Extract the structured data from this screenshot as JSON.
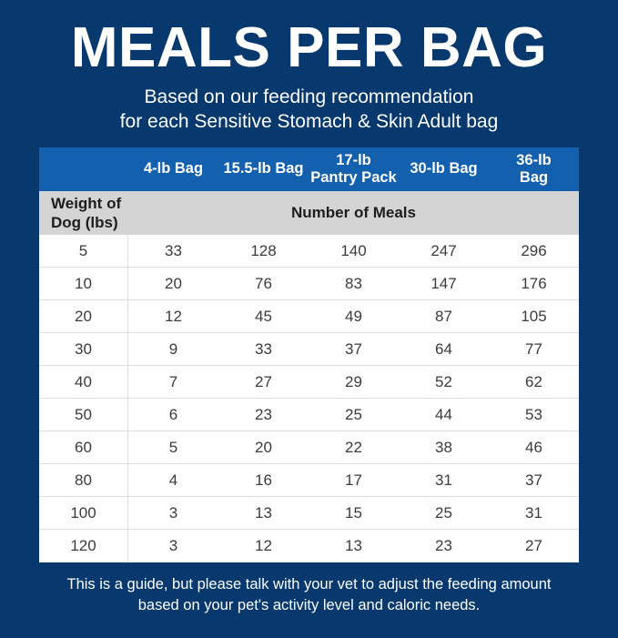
{
  "header": {
    "title": "MEALS PER BAG",
    "subtitle_line1": "Based on our feeding recommendation",
    "subtitle_line2": "for each Sensitive Stomach & Skin Adult bag"
  },
  "table": {
    "column_headers": [
      "",
      "4-lb Bag",
      "15.5-lb Bag",
      "17-lb\nPantry Pack",
      "30-lb Bag",
      "36-lb\nBag"
    ],
    "weight_header": "Weight of\nDog (lbs)",
    "meals_header": "Number of Meals"
  },
  "chart_data": {
    "type": "table",
    "title": "MEALS PER BAG",
    "subtitle": "Based on our feeding recommendation for each Sensitive Stomach & Skin Adult bag",
    "columns": [
      "Weight of Dog (lbs)",
      "4-lb Bag",
      "15.5-lb Bag",
      "17-lb Pantry Pack",
      "30-lb Bag",
      "36-lb Bag"
    ],
    "value_unit": "Number of Meals",
    "matrix": [
      [
        5,
        33,
        128,
        140,
        247,
        296
      ],
      [
        10,
        20,
        76,
        83,
        147,
        176
      ],
      [
        20,
        12,
        45,
        49,
        87,
        105
      ],
      [
        30,
        9,
        33,
        37,
        64,
        77
      ],
      [
        40,
        7,
        27,
        29,
        52,
        62
      ],
      [
        50,
        6,
        23,
        25,
        44,
        53
      ],
      [
        60,
        5,
        20,
        22,
        38,
        46
      ],
      [
        80,
        4,
        16,
        17,
        31,
        37
      ],
      [
        100,
        3,
        13,
        15,
        25,
        31
      ],
      [
        120,
        3,
        12,
        13,
        23,
        27
      ]
    ],
    "note": "This is a guide, but please talk with your vet to adjust the feeding amount based on your pet's activity level and caloric needs."
  },
  "footer": {
    "line1": "This is a guide, but please talk with your vet to adjust the feeding amount",
    "line2": "based on your pet's activity level and caloric needs."
  },
  "colors": {
    "background_navy": "#07386E",
    "header_blue": "#1360AF",
    "subheader_gray": "#D4D4D4",
    "row_white": "#FEFEFE",
    "row_divider": "#DEDEDE",
    "text_white": "#FFFFFF",
    "text_dark": "#3C3C3C"
  }
}
